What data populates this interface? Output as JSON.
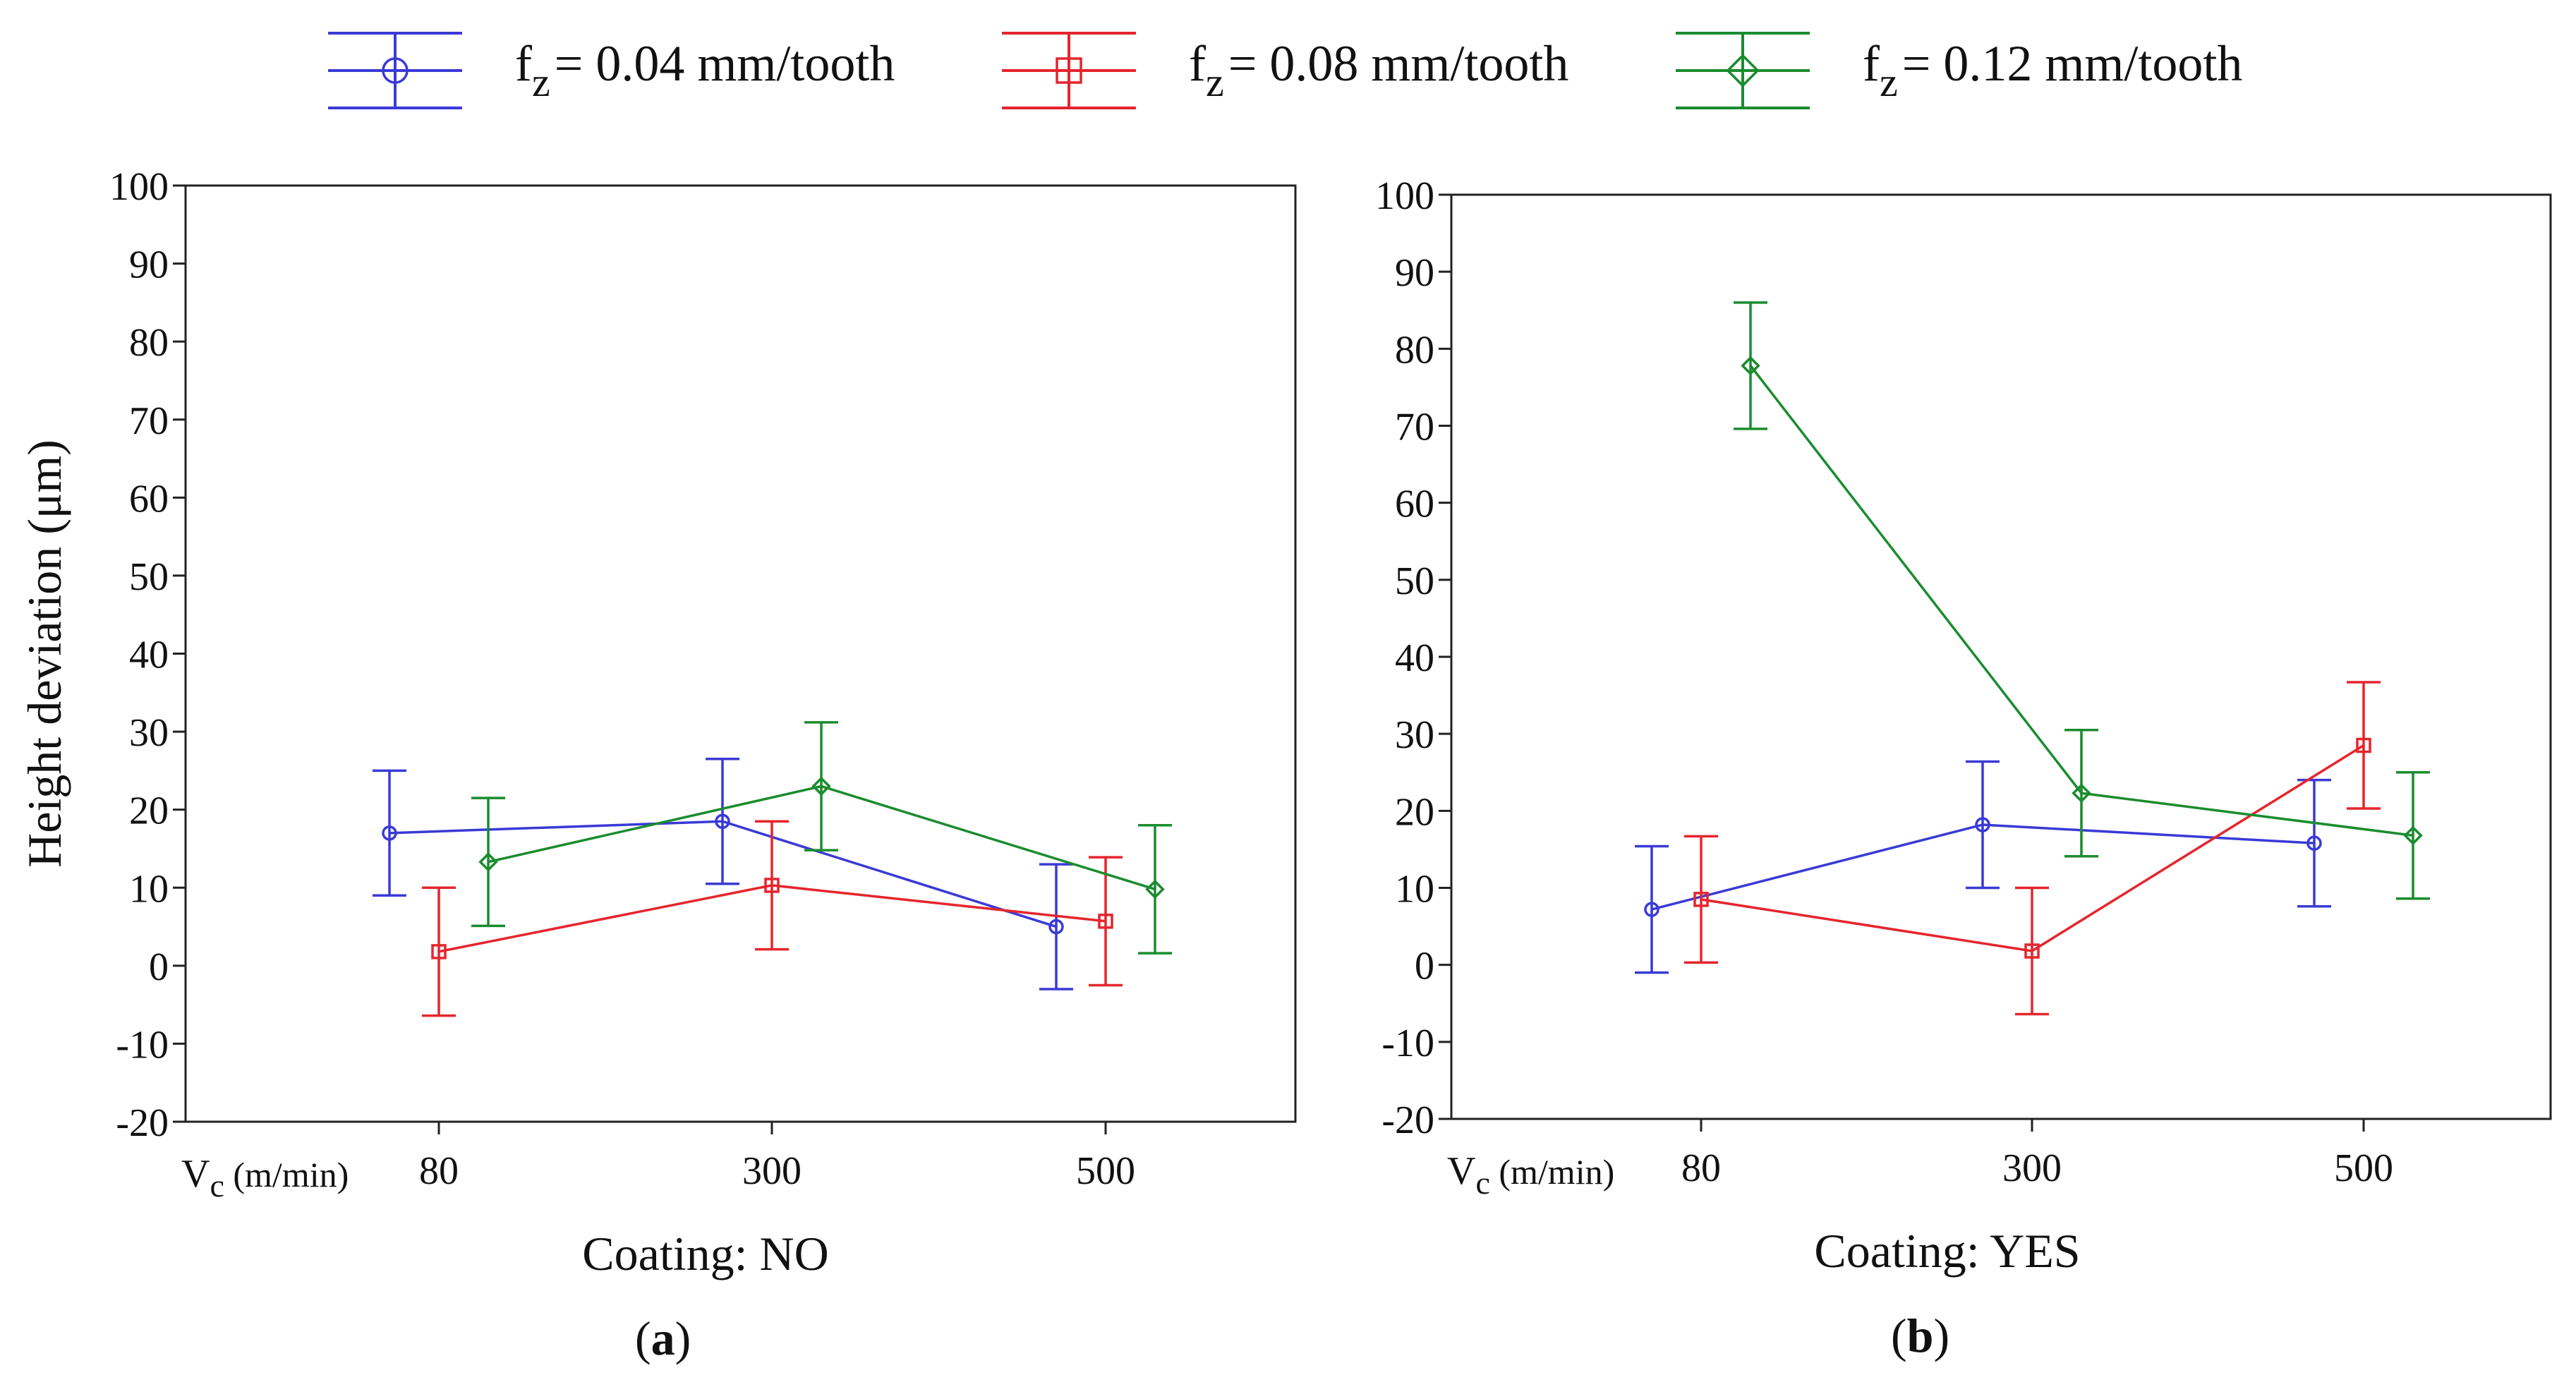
{
  "legend": {
    "items": [
      {
        "symbol": "f",
        "subscript": "z",
        "suffix": "= 0.04 mm/tooth",
        "color": "#3a3ad6",
        "marker": "circle"
      },
      {
        "symbol": "f",
        "subscript": "z",
        "suffix": "= 0.08 mm/tooth",
        "color": "#e5252d",
        "marker": "square"
      },
      {
        "symbol": "f",
        "subscript": "z",
        "suffix": "= 0.12 mm/tooth",
        "color": "#1a8c2e",
        "marker": "diamond"
      }
    ]
  },
  "chart_data": [
    {
      "type": "line",
      "panel_label": "(a)",
      "panel_letter": "a",
      "xlabel": "Coating: NO",
      "ylabel": "Height deviation (μm)",
      "xaxis_prefix": {
        "symbol": "V",
        "subscript": "c",
        "unit": "(m/min)"
      },
      "categories": [
        "80",
        "300",
        "500"
      ],
      "ylim": [
        -20,
        100
      ],
      "yticks": [
        -20,
        -10,
        0,
        10,
        20,
        30,
        40,
        50,
        60,
        70,
        80,
        90,
        100
      ],
      "series": [
        {
          "name": "fz = 0.04 mm/tooth",
          "values": [
            17,
            18.5,
            5
          ],
          "errors": [
            8,
            8,
            8
          ]
        },
        {
          "name": "fz = 0.08 mm/tooth",
          "values": [
            1.8,
            10.3,
            5.7
          ],
          "errors": [
            8.2,
            8.2,
            8.2
          ]
        },
        {
          "name": "fz = 0.12 mm/tooth",
          "values": [
            13.3,
            23,
            9.8
          ],
          "errors": [
            8.2,
            8.2,
            8.2
          ]
        }
      ]
    },
    {
      "type": "line",
      "panel_label": "(b)",
      "panel_letter": "b",
      "xlabel": "Coating: YES",
      "ylabel": "",
      "xaxis_prefix": {
        "symbol": "V",
        "subscript": "c",
        "unit": "(m/min)"
      },
      "categories": [
        "80",
        "300",
        "500"
      ],
      "ylim": [
        -20,
        100
      ],
      "yticks": [
        -20,
        -10,
        0,
        10,
        20,
        30,
        40,
        50,
        60,
        70,
        80,
        90,
        100
      ],
      "series": [
        {
          "name": "fz = 0.04 mm/tooth",
          "values": [
            7.2,
            18.2,
            15.8
          ],
          "errors": [
            8.2,
            8.2,
            8.2
          ]
        },
        {
          "name": "fz = 0.08 mm/tooth",
          "values": [
            8.5,
            1.8,
            28.5
          ],
          "errors": [
            8.2,
            8.2,
            8.2
          ]
        },
        {
          "name": "fz = 0.12 mm/tooth",
          "values": [
            77.8,
            22.3,
            16.8
          ],
          "errors": [
            8.2,
            8.2,
            8.2
          ]
        }
      ]
    }
  ]
}
